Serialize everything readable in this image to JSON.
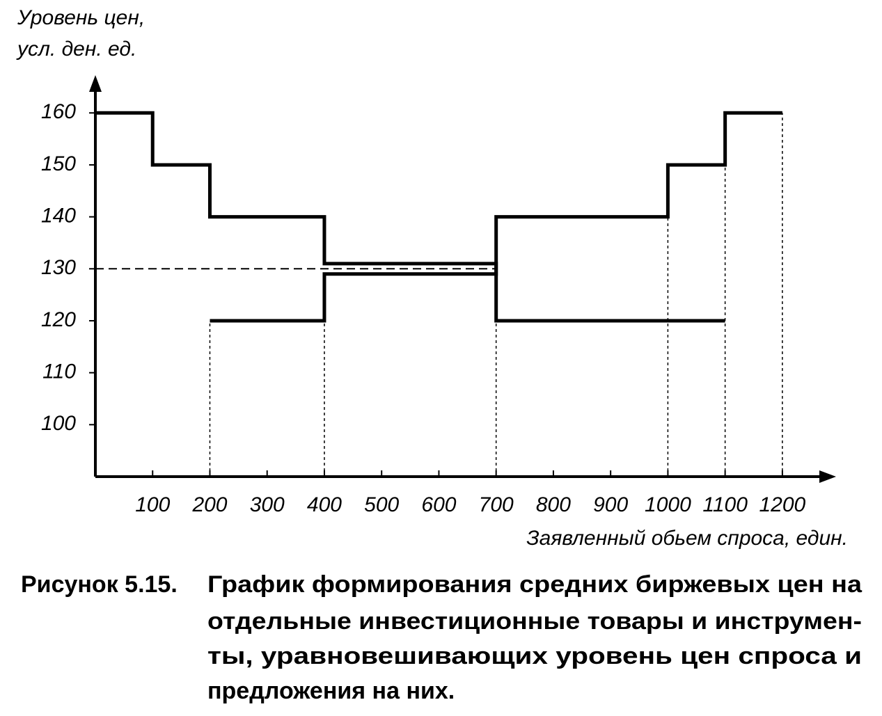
{
  "chart_data": {
    "type": "line",
    "y_label": [
      "Уровень цен,",
      "усл. ден. ед."
    ],
    "x_label": "Заявленный обьем спроса, един.",
    "xlim": [
      0,
      1250
    ],
    "ylim": [
      90,
      167
    ],
    "xticks": [
      100,
      200,
      300,
      400,
      500,
      600,
      700,
      800,
      900,
      1000,
      1100,
      1200
    ],
    "yticks": [
      100,
      110,
      120,
      130,
      140,
      150,
      160
    ],
    "series": [
      {
        "color": "#000000",
        "x": [
          0,
          100,
          100,
          200,
          200,
          400,
          400,
          700,
          700,
          1100
        ],
        "values": [
          160,
          160,
          150,
          150,
          140,
          140,
          131,
          131,
          120,
          120
        ]
      },
      {
        "color": "#000000",
        "x": [
          200,
          400,
          400,
          700,
          700,
          1000,
          1000,
          1100,
          1100,
          1200
        ],
        "values": [
          120,
          120,
          129,
          129,
          140,
          140,
          150,
          150,
          160,
          160
        ]
      }
    ],
    "reference_line": {
      "y": 130,
      "x": [
        0,
        700
      ]
    },
    "drop_lines": [
      {
        "x": 200,
        "y": 120
      },
      {
        "x": 400,
        "y": 120
      },
      {
        "x": 700,
        "y": 120
      },
      {
        "x": 1000,
        "y": 140
      },
      {
        "x": 1100,
        "y": 150
      },
      {
        "x": 1200,
        "y": 160
      }
    ]
  },
  "caption": {
    "label": "Рисунок 5.15.",
    "lines": [
      "График формирования средних биржевых цен на",
      "отдельные инвестиционные товары и инструмен-",
      "ты, уравновешивающих уровень цен спроса и",
      "предложения на них."
    ]
  }
}
